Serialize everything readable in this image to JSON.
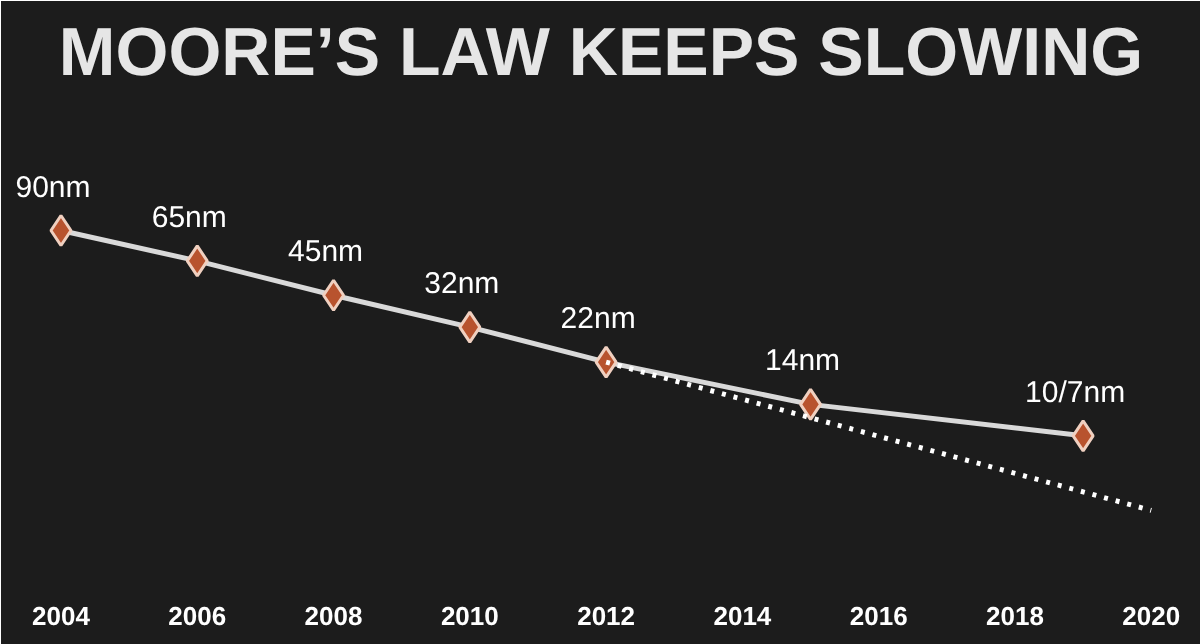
{
  "chart_data": {
    "type": "line",
    "title": "MOORE’S LAW KEEPS SLOWING",
    "log": "y",
    "xlim": [
      2003.12,
      2020.73
    ],
    "xticks": [
      2004,
      2006,
      2008,
      2010,
      2012,
      2014,
      2016,
      2018,
      2020
    ],
    "grid": false,
    "tick_labels": "x",
    "series": [
      {
        "color": "#d9d9d9",
        "marker": "diamond",
        "line_style": "solid",
        "x": [
          2004,
          2006,
          2008,
          2010,
          2012,
          2015,
          2019
        ],
        "values": [
          90,
          65,
          45,
          32,
          22,
          14,
          10
        ],
        "value_labels": [
          "90nm",
          "65nm",
          "45nm",
          "32nm",
          "22nm",
          "14nm",
          "10/7nm"
        ]
      },
      {
        "color": "#ffffff",
        "marker": "none",
        "line_style": "dotted",
        "x": [
          2012,
          2020
        ],
        "values": [
          22,
          4.5
        ]
      }
    ]
  }
}
